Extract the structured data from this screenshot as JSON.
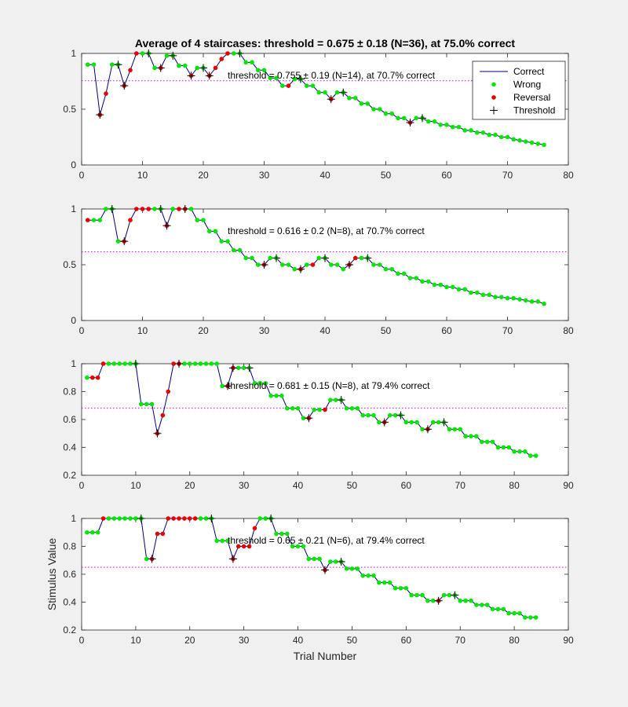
{
  "figure_title": "Average of 4 staircases: threshold = 0.675 ± 0.18 (N=36), at 75.0% correct",
  "legend": {
    "placement": "top-right",
    "entries": [
      {
        "label": "Correct",
        "kind": "line",
        "color": "#00007f"
      },
      {
        "label": "Wrong",
        "kind": "dot",
        "color": "#00e600"
      },
      {
        "label": "Reversal",
        "kind": "dot",
        "color": "#e60000"
      },
      {
        "label": "Threshold",
        "kind": "plus",
        "color": "#000000"
      }
    ]
  },
  "colors": {
    "line": "#00007f",
    "green": "#00e600",
    "red": "#e60000",
    "plus": "#000000",
    "threshold_line": "#e000e0"
  },
  "chart_data": [
    {
      "type": "line",
      "annotation": "threshold = 0.755 ± 0.19 (N=14), at 70.7% correct",
      "threshold": 0.755,
      "xlabel": "",
      "ylabel": "",
      "xlim": [
        0,
        80
      ],
      "ylim": [
        0,
        1
      ],
      "xticks": [
        0,
        10,
        20,
        30,
        40,
        50,
        60,
        70,
        80
      ],
      "yticks": [
        0,
        0.5,
        1
      ],
      "ytick_labels": [
        "0",
        "0.5",
        "1"
      ],
      "y": [
        0.9,
        0.9,
        0.45,
        0.64,
        0.9,
        0.9,
        0.71,
        0.85,
        1,
        1,
        1,
        0.87,
        0.87,
        0.98,
        0.98,
        0.89,
        0.89,
        0.8,
        0.87,
        0.87,
        0.8,
        0.87,
        0.95,
        1,
        1,
        1,
        0.92,
        0.92,
        0.85,
        0.85,
        0.78,
        0.78,
        0.71,
        0.71,
        0.77,
        0.77,
        0.71,
        0.71,
        0.65,
        0.65,
        0.59,
        0.65,
        0.65,
        0.6,
        0.6,
        0.55,
        0.55,
        0.5,
        0.5,
        0.46,
        0.46,
        0.42,
        0.42,
        0.38,
        0.42,
        0.42,
        0.39,
        0.39,
        0.36,
        0.36,
        0.34,
        0.34,
        0.31,
        0.31,
        0.29,
        0.29,
        0.27,
        0.27,
        0.25,
        0.25,
        0.23,
        0.22,
        0.21,
        0.2,
        0.19,
        0.18
      ],
      "reversals": [
        3,
        4,
        7,
        8,
        9,
        13,
        18,
        21,
        22,
        23,
        24,
        34,
        41,
        54
      ],
      "thresholds": [
        3,
        6,
        7,
        11,
        13,
        15,
        18,
        20,
        21,
        26,
        36,
        41,
        43,
        54,
        56
      ]
    },
    {
      "type": "line",
      "annotation": "threshold = 0.616 ± 0.2 (N=8), at 70.7% correct",
      "threshold": 0.616,
      "xlabel": "",
      "ylabel": "",
      "xlim": [
        0,
        80
      ],
      "ylim": [
        0,
        1
      ],
      "xticks": [
        0,
        10,
        20,
        30,
        40,
        50,
        60,
        70,
        80
      ],
      "yticks": [
        0,
        0.5,
        1
      ],
      "ytick_labels": [
        "0",
        "0.5",
        "1"
      ],
      "y": [
        0.9,
        0.9,
        0.9,
        1,
        1,
        0.71,
        0.71,
        0.9,
        1,
        1,
        1,
        1,
        1,
        0.85,
        1,
        1,
        1,
        1,
        0.9,
        0.9,
        0.8,
        0.8,
        0.71,
        0.71,
        0.63,
        0.63,
        0.56,
        0.56,
        0.5,
        0.5,
        0.56,
        0.56,
        0.5,
        0.5,
        0.46,
        0.46,
        0.5,
        0.5,
        0.56,
        0.56,
        0.5,
        0.5,
        0.46,
        0.5,
        0.56,
        0.56,
        0.56,
        0.5,
        0.5,
        0.46,
        0.46,
        0.42,
        0.42,
        0.38,
        0.38,
        0.35,
        0.35,
        0.32,
        0.32,
        0.3,
        0.3,
        0.28,
        0.28,
        0.25,
        0.25,
        0.23,
        0.23,
        0.21,
        0.21,
        0.2,
        0.2,
        0.19,
        0.18,
        0.17,
        0.17,
        0.15
      ],
      "reversals": [
        1,
        7,
        8,
        9,
        10,
        11,
        14,
        16,
        17,
        30,
        36,
        38,
        44,
        45
      ],
      "thresholds": [
        5,
        7,
        13,
        14,
        17,
        30,
        32,
        36,
        40,
        44,
        47
      ]
    },
    {
      "type": "line",
      "annotation": "threshold = 0.681 ± 0.15 (N=8), at 79.4% correct",
      "threshold": 0.681,
      "xlabel": "",
      "ylabel": "",
      "xlim": [
        0,
        90
      ],
      "ylim": [
        0.2,
        1
      ],
      "xticks": [
        0,
        10,
        20,
        30,
        40,
        50,
        60,
        70,
        80,
        90
      ],
      "yticks": [
        0.2,
        0.4,
        0.6,
        0.8,
        1
      ],
      "ytick_labels": [
        "0.2",
        "0.4",
        "0.6",
        "0.8",
        "1"
      ],
      "y": [
        0.9,
        0.9,
        0.9,
        1,
        1,
        1,
        1,
        1,
        1,
        1,
        0.71,
        0.71,
        0.71,
        0.5,
        0.63,
        0.8,
        1,
        1,
        1,
        1,
        1,
        1,
        1,
        1,
        1,
        0.84,
        0.84,
        0.97,
        0.97,
        0.97,
        0.97,
        0.86,
        0.86,
        0.86,
        0.77,
        0.77,
        0.77,
        0.68,
        0.68,
        0.68,
        0.61,
        0.61,
        0.67,
        0.67,
        0.67,
        0.74,
        0.74,
        0.74,
        0.68,
        0.68,
        0.68,
        0.63,
        0.63,
        0.63,
        0.58,
        0.58,
        0.63,
        0.63,
        0.63,
        0.58,
        0.58,
        0.58,
        0.53,
        0.53,
        0.58,
        0.58,
        0.58,
        0.53,
        0.53,
        0.53,
        0.48,
        0.48,
        0.48,
        0.44,
        0.44,
        0.44,
        0.4,
        0.4,
        0.4,
        0.37,
        0.37,
        0.37,
        0.34,
        0.34
      ],
      "reversals": [
        2,
        3,
        4,
        14,
        15,
        16,
        17,
        18,
        27,
        28,
        42,
        45,
        56,
        64
      ],
      "thresholds": [
        10,
        14,
        18,
        27,
        28,
        31,
        42,
        48,
        56,
        59,
        64,
        67
      ]
    },
    {
      "type": "line",
      "annotation": "threshold = 0.65 ± 0.21 (N=6), at 79.4% correct",
      "threshold": 0.65,
      "xlabel": "Trial Number",
      "ylabel": "Stimulus Value",
      "xlim": [
        0,
        90
      ],
      "ylim": [
        0.2,
        1
      ],
      "xticks": [
        0,
        10,
        20,
        30,
        40,
        50,
        60,
        70,
        80,
        90
      ],
      "yticks": [
        0.2,
        0.4,
        0.6,
        0.8,
        1
      ],
      "ytick_labels": [
        "0.2",
        "0.4",
        "0.6",
        "0.8",
        "1"
      ],
      "y": [
        0.9,
        0.9,
        0.9,
        1,
        1,
        1,
        1,
        1,
        1,
        1,
        1,
        0.71,
        0.71,
        0.89,
        0.89,
        1,
        1,
        1,
        1,
        1,
        1,
        1,
        1,
        1,
        0.84,
        0.84,
        0.84,
        0.71,
        0.8,
        0.8,
        0.8,
        0.93,
        1,
        1,
        1,
        0.89,
        0.89,
        0.89,
        0.8,
        0.8,
        0.8,
        0.71,
        0.71,
        0.71,
        0.63,
        0.69,
        0.69,
        0.69,
        0.64,
        0.64,
        0.64,
        0.59,
        0.59,
        0.59,
        0.54,
        0.54,
        0.54,
        0.5,
        0.5,
        0.5,
        0.45,
        0.45,
        0.45,
        0.41,
        0.41,
        0.41,
        0.45,
        0.45,
        0.45,
        0.41,
        0.41,
        0.41,
        0.38,
        0.38,
        0.38,
        0.35,
        0.35,
        0.35,
        0.32,
        0.32,
        0.32,
        0.29,
        0.29,
        0.29
      ],
      "reversals": [
        4,
        13,
        14,
        15,
        16,
        17,
        18,
        19,
        20,
        21,
        28,
        29,
        30,
        31,
        32,
        45,
        66
      ],
      "thresholds": [
        11,
        13,
        24,
        28,
        35,
        45,
        48,
        66,
        69
      ]
    }
  ]
}
